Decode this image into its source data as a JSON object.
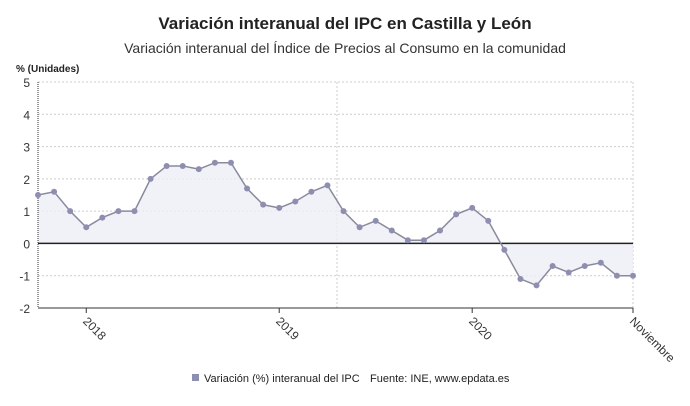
{
  "chart_data": {
    "type": "area",
    "title": "Variación interanual del IPC en Castilla y León",
    "subtitle": "Variación interanual del Índice de Precios al Consumo en la comunidad",
    "ylabel": "% (Unidades)",
    "ylim": [
      -2,
      5
    ],
    "yticks": [
      -2,
      -1,
      0,
      1,
      2,
      3,
      4,
      5
    ],
    "xticks": [
      {
        "label": "2018",
        "index": 3
      },
      {
        "label": "2019",
        "index": 15
      },
      {
        "label": "2020",
        "index": 27
      },
      {
        "label": "Noviembre",
        "index": 37
      }
    ],
    "grid": true,
    "legend_position": "bottom",
    "color": "#8e8fb0",
    "x_start": "2017-10",
    "x_end": "2020-11",
    "series": [
      {
        "name": "Variación (%) interanual del IPC",
        "values": [
          1.5,
          1.6,
          1.0,
          0.5,
          0.8,
          1.0,
          1.0,
          2.0,
          2.4,
          2.4,
          2.3,
          2.5,
          2.5,
          1.7,
          1.2,
          1.1,
          1.3,
          1.6,
          1.8,
          1.0,
          0.5,
          0.7,
          0.4,
          0.1,
          0.1,
          0.4,
          0.9,
          1.1,
          0.7,
          -0.2,
          -1.1,
          -1.3,
          -0.7,
          -0.9,
          -0.7,
          -0.6,
          -1.0,
          -1.0
        ]
      }
    ],
    "source": "Fuente: INE, www.epdata.es"
  }
}
